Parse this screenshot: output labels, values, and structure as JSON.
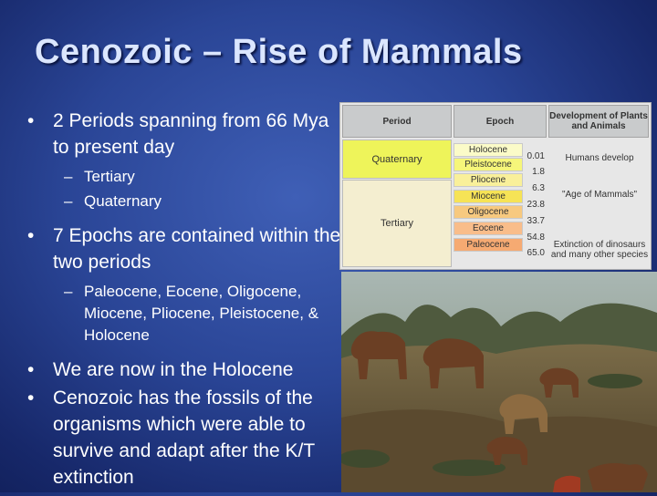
{
  "title": "Cenozoic – Rise of Mammals",
  "bullets": [
    {
      "text": "2 Periods spanning from 66 Mya to present day",
      "subs": [
        "Tertiary",
        "Quaternary"
      ]
    },
    {
      "text": "7 Epochs are contained within the two periods",
      "subs": [
        "Paleocene, Eocene, Oligocene, Miocene, Pliocene, Pleistocene, & Holocene"
      ]
    },
    {
      "text": "We are now in the Holocene",
      "subs": []
    },
    {
      "text": "Cenozoic has the fossils of the organisms which were able to survive and adapt after the K/T extinction",
      "subs": []
    }
  ],
  "bullet_glyph": "•",
  "sub_glyph": "–",
  "timescale": {
    "headers": {
      "period": "Period",
      "epoch": "Epoch",
      "development": "Development of Plants and Animals"
    },
    "periods": [
      "Quaternary",
      "Tertiary"
    ],
    "epochs": [
      "Holocene",
      "Pleistocene",
      "Pliocene",
      "Miocene",
      "Oligocene",
      "Eocene",
      "Paleocene"
    ],
    "ages": [
      "0.01",
      "1.8",
      "6.3",
      "23.8",
      "33.7",
      "54.8",
      "65.0"
    ],
    "development": [
      "Humans develop",
      "\"Age of Mammals\"",
      "Extinction of dinosaurs and many other species"
    ],
    "colors": {
      "quaternary": "#eef45a",
      "tertiary": "#f4eed0",
      "holocene": "#fbfbc8",
      "pleistocene": "#f6f67a",
      "pliocene": "#f9f09a",
      "miocene": "#f6e356",
      "oligocene": "#f7c97f",
      "eocene": "#f9bd8a",
      "paleocene": "#f6aa72"
    }
  },
  "image": {
    "subject": "prehistoric-mammals-illustration"
  }
}
